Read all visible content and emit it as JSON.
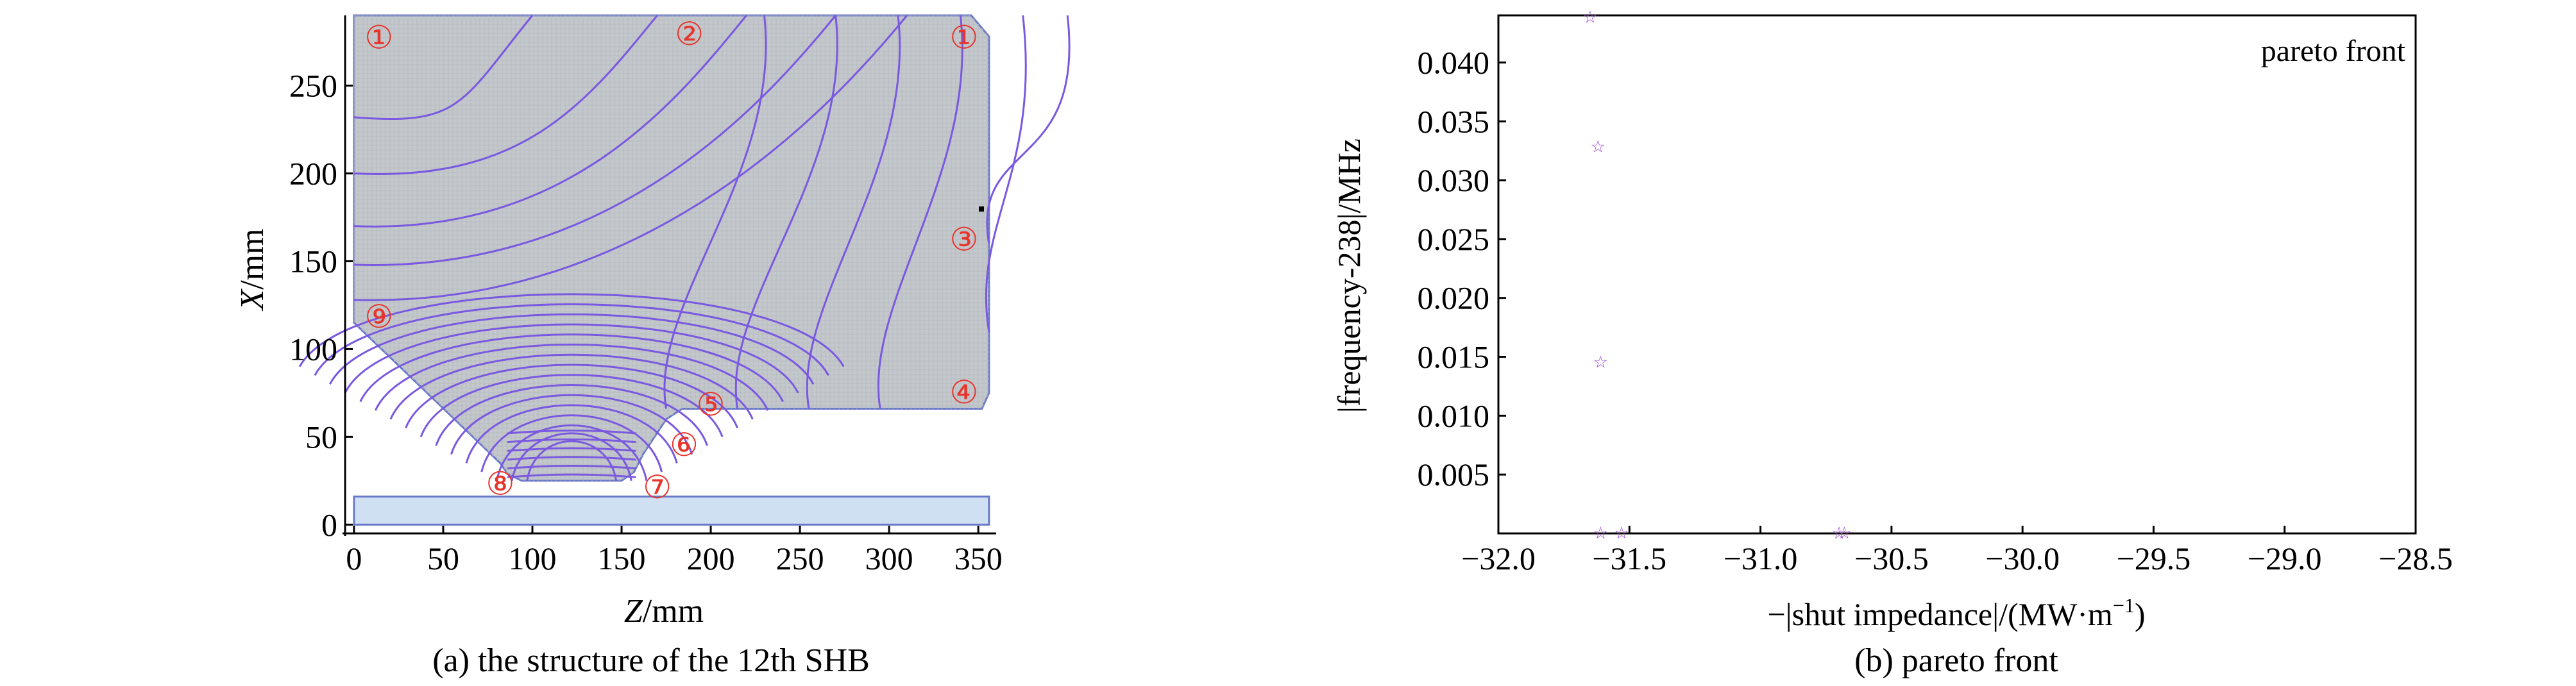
{
  "chart_data": [
    {
      "type": "diagram",
      "caption": "(a) the structure of the 12th SHB",
      "xlabel_italic": "Z",
      "xlabel_unit": "/mm",
      "ylabel_italic": "X",
      "ylabel_unit": "/mm",
      "xlim": [
        -5,
        360
      ],
      "ylim": [
        -5,
        290
      ],
      "xticks": [
        "0",
        "50",
        "100",
        "150",
        "200",
        "250",
        "300",
        "350"
      ],
      "xtick_values": [
        0,
        50,
        100,
        150,
        200,
        250,
        300,
        350
      ],
      "yticks": [
        "0",
        "50",
        "100",
        "150",
        "200",
        "250"
      ],
      "ytick_values": [
        0,
        50,
        100,
        150,
        200,
        250
      ],
      "outline": [
        [
          0,
          115
        ],
        [
          82,
          35
        ],
        [
          86,
          29
        ],
        [
          94,
          25
        ],
        [
          150,
          25
        ],
        [
          157,
          30
        ],
        [
          162,
          40
        ],
        [
          175,
          60
        ],
        [
          184,
          66
        ],
        [
          352,
          66
        ],
        [
          356,
          75
        ],
        [
          356,
          278
        ],
        [
          346,
          290
        ],
        [
          0,
          290
        ]
      ],
      "beam_pipe": {
        "z": [
          0,
          356
        ],
        "x": [
          0,
          16
        ]
      },
      "markers": [
        {
          "label": "①",
          "z": 14,
          "x": 277
        },
        {
          "label": "②",
          "z": 188,
          "x": 279
        },
        {
          "label": "①",
          "z": 342,
          "x": 277
        },
        {
          "label": "③",
          "z": 342,
          "x": 162
        },
        {
          "label": "⑨",
          "z": 14,
          "x": 118
        },
        {
          "label": "④",
          "z": 342,
          "x": 75
        },
        {
          "label": "⑤",
          "z": 200,
          "x": 68
        },
        {
          "label": "⑥",
          "z": 185,
          "x": 45
        },
        {
          "label": "⑦",
          "z": 170,
          "x": 21
        },
        {
          "label": "⑧",
          "z": 82,
          "x": 23
        }
      ],
      "colors": {
        "mesh_fill": "#c4c8cc",
        "outline": "#6878c8",
        "field_lines": "#7a58e0",
        "marker": "#e8342a",
        "beam_pipe_fill": "#cfe0f2"
      }
    },
    {
      "type": "scatter",
      "caption": "(b) pareto front",
      "xlabel": "−|shut impedance|/(MW·m",
      "xlabel_sup": "−1",
      "xlabel_end": ")",
      "ylabel": "|frequency-238|/MHz",
      "legend": "pareto front",
      "legend_position": "top-right",
      "xlim": [
        -32.0,
        -28.5
      ],
      "ylim": [
        0.0,
        0.044
      ],
      "xticks": [
        "−32.0",
        "−31.5",
        "−31.0",
        "−30.5",
        "−30.0",
        "−29.5",
        "−29.0",
        "−28.5"
      ],
      "xtick_values": [
        -32.0,
        -31.5,
        -31.0,
        -30.5,
        -30.0,
        -29.5,
        -29.0,
        -28.5
      ],
      "yticks": [
        "0.005",
        "0.010",
        "0.015",
        "0.020",
        "0.025",
        "0.030",
        "0.035",
        "0.040"
      ],
      "ytick_values": [
        0.005,
        0.01,
        0.015,
        0.02,
        0.025,
        0.03,
        0.035,
        0.04
      ],
      "points": [
        {
          "x": -31.65,
          "y": 0.0438
        },
        {
          "x": -31.62,
          "y": 0.0328
        },
        {
          "x": -31.61,
          "y": 0.0145
        },
        {
          "x": -31.61,
          "y": 0.0
        },
        {
          "x": -31.53,
          "y": 0.0
        },
        {
          "x": -30.7,
          "y": 0.0
        },
        {
          "x": -30.68,
          "y": 0.0
        }
      ],
      "marker": "☆",
      "colors": {
        "points": "#a046d8"
      }
    }
  ]
}
